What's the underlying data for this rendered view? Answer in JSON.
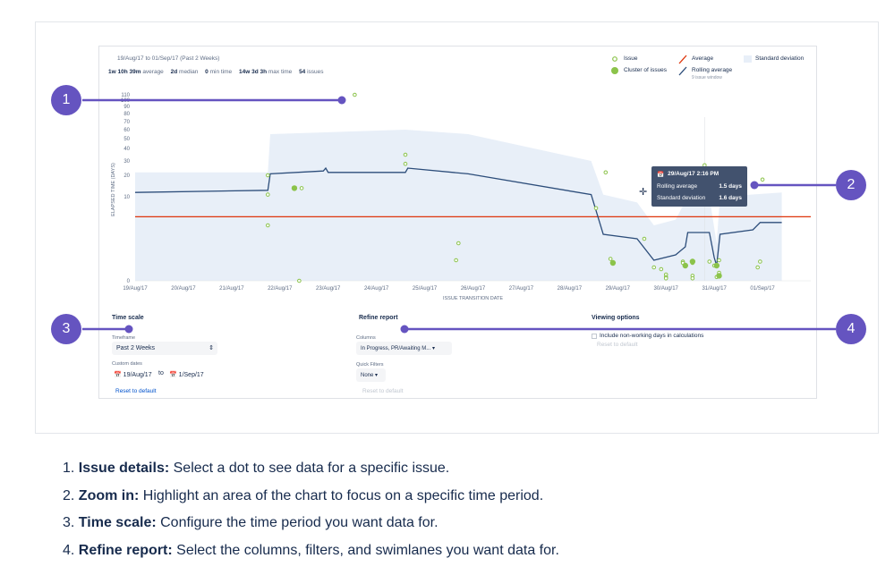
{
  "report": {
    "date_range": "19/Aug/17 to 01/Sep/17 (Past 2 Weeks)",
    "stats": [
      {
        "value": "1w 10h 39m",
        "label": "average"
      },
      {
        "value": "2d",
        "label": "median"
      },
      {
        "value": "0",
        "label": "min time"
      },
      {
        "value": "14w 3d 3h",
        "label": "max time"
      },
      {
        "value": "54",
        "label": "issues"
      }
    ],
    "legend": {
      "issue": "Issue",
      "cluster": "Cluster of issues",
      "average": "Average",
      "rolling": "Rolling average",
      "rolling_sub": "9 issue window",
      "stddev": "Standard deviation"
    },
    "colors": {
      "accent": "#6554c0",
      "dot": "#8bc34a",
      "average": "#de350b",
      "rolling": "#2c4d7a",
      "band": "#e8eff8"
    }
  },
  "chart_data": {
    "type": "scatter",
    "xlabel": "ISSUE TRANSITION DATE",
    "ylabel": "ELAPSED TIME (DAYS)",
    "x_ticks": [
      "19/Aug/17",
      "20/Aug/17",
      "21/Aug/17",
      "22/Aug/17",
      "23/Aug/17",
      "24/Aug/17",
      "25/Aug/17",
      "26/Aug/17",
      "27/Aug/17",
      "28/Aug/17",
      "29/Aug/17",
      "30/Aug/17",
      "31/Aug/17",
      "01/Sep/17"
    ],
    "y_ticks": [
      "110",
      "100",
      "90",
      "80",
      "70",
      "60",
      "50",
      "40",
      "30",
      "20",
      "10",
      "0"
    ],
    "average_days": 6.5,
    "issues": [
      {
        "x": 21.75,
        "y": 20
      },
      {
        "x": 21.75,
        "y": 11
      },
      {
        "x": 21.75,
        "y": 5
      },
      {
        "x": 22.45,
        "y": 14
      },
      {
        "x": 22.4,
        "y": 0
      },
      {
        "x": 23.55,
        "y": 110
      },
      {
        "x": 24.6,
        "y": 35
      },
      {
        "x": 24.6,
        "y": 28
      },
      {
        "x": 25.7,
        "y": 3
      },
      {
        "x": 25.65,
        "y": 1.4
      },
      {
        "x": 28.55,
        "y": 8
      },
      {
        "x": 28.75,
        "y": 22
      },
      {
        "x": 28.85,
        "y": 1.5
      },
      {
        "x": 29.55,
        "y": 3.5
      },
      {
        "x": 29.75,
        "y": 0.9
      },
      {
        "x": 29.9,
        "y": 0.8
      },
      {
        "x": 30.0,
        "y": 0.5
      },
      {
        "x": 30.0,
        "y": 0.3
      },
      {
        "x": 30.0,
        "y": 0.2
      },
      {
        "x": 30.35,
        "y": 1.3
      },
      {
        "x": 30.35,
        "y": 1.2
      },
      {
        "x": 30.55,
        "y": 1.2
      },
      {
        "x": 30.55,
        "y": 0.4
      },
      {
        "x": 30.55,
        "y": 0.2
      },
      {
        "x": 30.8,
        "y": 27
      },
      {
        "x": 30.9,
        "y": 1.3
      },
      {
        "x": 31.0,
        "y": 1.0
      },
      {
        "x": 31.1,
        "y": 1.4
      },
      {
        "x": 31.1,
        "y": 0.6
      },
      {
        "x": 31.05,
        "y": 0.3
      },
      {
        "x": 32.0,
        "y": 18
      },
      {
        "x": 31.95,
        "y": 1.3
      },
      {
        "x": 31.9,
        "y": 0.9
      }
    ],
    "clusters": [
      {
        "x": 22.3,
        "y": 14
      },
      {
        "x": 28.9,
        "y": 1.2
      },
      {
        "x": 30.4,
        "y": 1.0
      },
      {
        "x": 30.55,
        "y": 1.3
      },
      {
        "x": 31.05,
        "y": 1.0
      },
      {
        "x": 31.1,
        "y": 0.4
      }
    ],
    "rolling_average": [
      {
        "x": 19.0,
        "y": 12
      },
      {
        "x": 21.75,
        "y": 13
      },
      {
        "x": 21.8,
        "y": 21
      },
      {
        "x": 22.9,
        "y": 23
      },
      {
        "x": 22.95,
        "y": 25
      },
      {
        "x": 23.0,
        "y": 22
      },
      {
        "x": 24.6,
        "y": 22
      },
      {
        "x": 24.65,
        "y": 25
      },
      {
        "x": 25.9,
        "y": 21
      },
      {
        "x": 28.45,
        "y": 11
      },
      {
        "x": 28.7,
        "y": 4
      },
      {
        "x": 29.4,
        "y": 3.5
      },
      {
        "x": 29.75,
        "y": 1.4
      },
      {
        "x": 30.2,
        "y": 1.8
      },
      {
        "x": 30.4,
        "y": 2.6
      },
      {
        "x": 30.45,
        "y": 4.2
      },
      {
        "x": 30.9,
        "y": 4.2
      },
      {
        "x": 31.0,
        "y": 1.6
      },
      {
        "x": 31.05,
        "y": 1.0
      },
      {
        "x": 31.12,
        "y": 4.0
      },
      {
        "x": 31.8,
        "y": 4.5
      },
      {
        "x": 31.95,
        "y": 5.5
      },
      {
        "x": 32.4,
        "y": 5.5
      }
    ],
    "tooltip": {
      "date": "29/Aug/17 2:16 PM",
      "rolling_label": "Rolling average",
      "rolling_value": "1.5 days",
      "stddev_label": "Standard deviation",
      "stddev_value": "1.6 days"
    }
  },
  "controls": {
    "time_scale": {
      "heading": "Time scale",
      "timeframe_label": "Timeframe",
      "timeframe_value": "Past 2 Weeks",
      "custom_label": "Custom dates",
      "from": "19/Aug/17",
      "to_word": "to",
      "to": "1/Sep/17",
      "reset": "Reset to default"
    },
    "refine": {
      "heading": "Refine report",
      "columns_label": "Columns",
      "columns_value": "In Progress, PR/Awaiting M...",
      "filters_label": "Quick Filters",
      "filters_value": "None",
      "reset": "Reset to default"
    },
    "viewing": {
      "heading": "Viewing options",
      "checkbox_label": "Include non-working days in calculations",
      "reset": "Reset to default"
    }
  },
  "callouts": [
    "1",
    "2",
    "3",
    "4"
  ],
  "steps": [
    {
      "term": "Issue details:",
      "text": " Select a dot to see data for a specific issue."
    },
    {
      "term": "Zoom in:",
      "text": " Highlight an area of the chart to focus on a specific time period."
    },
    {
      "term": "Time scale:",
      "text": " Configure the time period you want data for."
    },
    {
      "term": "Refine report:",
      "text": " Select the columns, filters, and swimlanes you want data for."
    }
  ],
  "step_numbers": [
    "1.",
    "2.",
    "3.",
    "4."
  ]
}
